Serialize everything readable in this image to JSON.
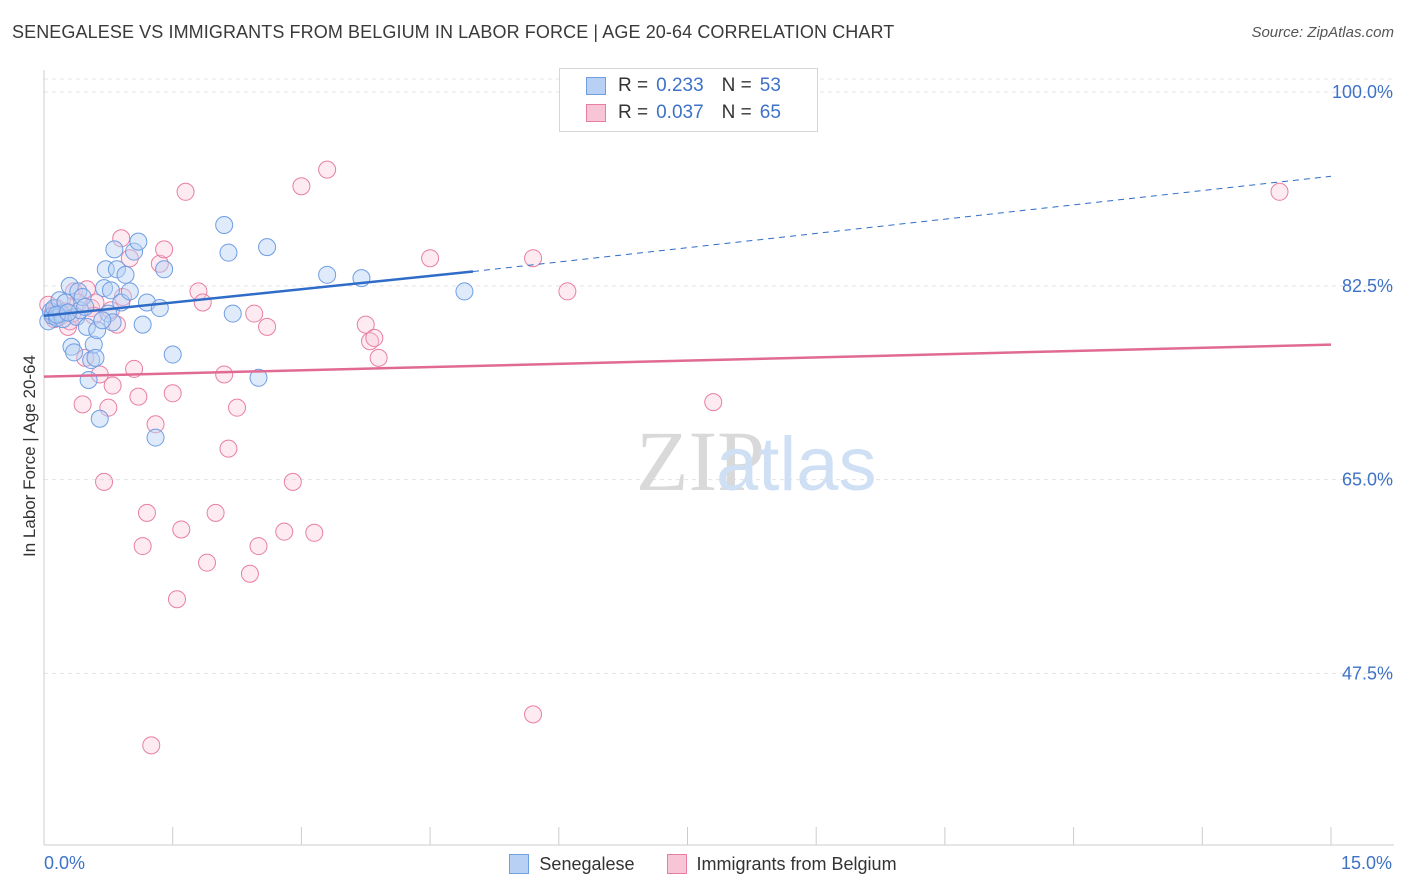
{
  "title": "SENEGALESE VS IMMIGRANTS FROM BELGIUM IN LABOR FORCE | AGE 20-64 CORRELATION CHART",
  "source": "Source: ZipAtlas.com",
  "watermark": {
    "zip": "ZIP",
    "atlas": "atlas"
  },
  "legend": {
    "r_label": "R =",
    "n_label": "N =",
    "series": [
      {
        "name": "Senegalese",
        "r": "0.233",
        "n": "53",
        "color": "#6f9ee3",
        "fill": "#b8d0f4"
      },
      {
        "name": "Immigrants from Belgium",
        "r": "0.037",
        "n": "65",
        "color": "#e87fa3",
        "fill": "#f8c5d6"
      }
    ]
  },
  "chart_data": {
    "type": "scatter",
    "title": "SENEGALESE VS IMMIGRANTS FROM BELGIUM IN LABOR FORCE | AGE 20-64 CORRELATION CHART",
    "xlabel": "",
    "ylabel": "In Labor Force | Age 20-64",
    "xlim": [
      0,
      15
    ],
    "ylim": [
      32,
      102
    ],
    "x_tick_labels": [
      "0.0%",
      "15.0%"
    ],
    "y_ticks": [
      47.5,
      65.0,
      82.5,
      100.0
    ],
    "y_tick_labels": [
      "47.5%",
      "65.0%",
      "82.5%",
      "100.0%"
    ],
    "series": [
      {
        "name": "Senegalese",
        "trend": {
          "x": [
            0.0,
            5.0
          ],
          "y": [
            79.8,
            83.8
          ],
          "extend_x": [
            5.0,
            15.0
          ],
          "extend_y": [
            83.8,
            92.4
          ]
        },
        "points": [
          [
            0.05,
            79.3
          ],
          [
            0.08,
            80.2
          ],
          [
            0.1,
            79.8
          ],
          [
            0.12,
            80.5
          ],
          [
            0.15,
            79.6
          ],
          [
            0.18,
            81.2
          ],
          [
            0.2,
            80.0
          ],
          [
            0.22,
            79.5
          ],
          [
            0.25,
            81.0
          ],
          [
            0.3,
            82.5
          ],
          [
            0.32,
            77.0
          ],
          [
            0.35,
            76.5
          ],
          [
            0.38,
            79.7
          ],
          [
            0.4,
            82.0
          ],
          [
            0.42,
            80.3
          ],
          [
            0.45,
            81.5
          ],
          [
            0.5,
            78.8
          ],
          [
            0.52,
            74.0
          ],
          [
            0.55,
            75.8
          ],
          [
            0.58,
            77.2
          ],
          [
            0.6,
            76.0
          ],
          [
            0.62,
            78.5
          ],
          [
            0.65,
            70.5
          ],
          [
            0.7,
            82.3
          ],
          [
            0.72,
            84.0
          ],
          [
            0.75,
            80.0
          ],
          [
            0.78,
            82.1
          ],
          [
            0.8,
            79.2
          ],
          [
            0.82,
            85.8
          ],
          [
            0.85,
            84.0
          ],
          [
            0.9,
            81.0
          ],
          [
            0.95,
            83.5
          ],
          [
            1.0,
            82.0
          ],
          [
            1.05,
            85.6
          ],
          [
            1.1,
            86.5
          ],
          [
            1.15,
            79.0
          ],
          [
            1.2,
            81.0
          ],
          [
            1.3,
            68.8
          ],
          [
            1.35,
            80.5
          ],
          [
            1.4,
            84.0
          ],
          [
            1.5,
            76.3
          ],
          [
            2.1,
            88.0
          ],
          [
            2.15,
            85.5
          ],
          [
            2.2,
            80.0
          ],
          [
            2.5,
            74.2
          ],
          [
            2.6,
            86.0
          ],
          [
            3.3,
            83.5
          ],
          [
            3.7,
            83.2
          ],
          [
            4.9,
            82.0
          ],
          [
            0.15,
            79.9
          ],
          [
            0.28,
            80.1
          ],
          [
            0.48,
            80.6
          ],
          [
            0.68,
            79.4
          ]
        ]
      },
      {
        "name": "Immigrants from Belgium",
        "trend": {
          "x": [
            0.0,
            15.0
          ],
          "y": [
            74.3,
            77.2
          ]
        },
        "points": [
          [
            0.05,
            80.8
          ],
          [
            0.1,
            80.0
          ],
          [
            0.12,
            79.5
          ],
          [
            0.15,
            80.5
          ],
          [
            0.2,
            79.8
          ],
          [
            0.25,
            80.2
          ],
          [
            0.28,
            78.8
          ],
          [
            0.3,
            79.3
          ],
          [
            0.35,
            82.0
          ],
          [
            0.4,
            81.0
          ],
          [
            0.45,
            71.8
          ],
          [
            0.48,
            76.0
          ],
          [
            0.5,
            82.2
          ],
          [
            0.55,
            80.5
          ],
          [
            0.6,
            81.0
          ],
          [
            0.65,
            74.5
          ],
          [
            0.7,
            64.8
          ],
          [
            0.75,
            71.5
          ],
          [
            0.8,
            73.5
          ],
          [
            0.85,
            79.0
          ],
          [
            0.9,
            86.8
          ],
          [
            0.92,
            81.5
          ],
          [
            1.0,
            85.0
          ],
          [
            1.05,
            75.0
          ],
          [
            1.1,
            72.5
          ],
          [
            1.15,
            59.0
          ],
          [
            1.2,
            62.0
          ],
          [
            1.25,
            41.0
          ],
          [
            1.3,
            70.0
          ],
          [
            1.35,
            84.5
          ],
          [
            1.4,
            85.8
          ],
          [
            1.5,
            72.8
          ],
          [
            1.55,
            54.2
          ],
          [
            1.6,
            60.5
          ],
          [
            1.65,
            91.0
          ],
          [
            1.8,
            82.0
          ],
          [
            1.85,
            81.0
          ],
          [
            1.9,
            57.5
          ],
          [
            2.0,
            62.0
          ],
          [
            2.1,
            74.5
          ],
          [
            2.15,
            67.8
          ],
          [
            2.25,
            71.5
          ],
          [
            2.4,
            56.5
          ],
          [
            2.45,
            80.0
          ],
          [
            2.5,
            59.0
          ],
          [
            2.6,
            78.8
          ],
          [
            2.8,
            60.3
          ],
          [
            2.9,
            64.8
          ],
          [
            3.0,
            91.5
          ],
          [
            3.15,
            60.2
          ],
          [
            3.3,
            93.0
          ],
          [
            3.75,
            79.0
          ],
          [
            3.8,
            77.5
          ],
          [
            3.85,
            77.8
          ],
          [
            3.9,
            76.0
          ],
          [
            4.5,
            85.0
          ],
          [
            5.7,
            85.0
          ],
          [
            6.1,
            82.0
          ],
          [
            7.8,
            72.0
          ],
          [
            5.7,
            43.8
          ],
          [
            14.4,
            91.0
          ],
          [
            0.18,
            80.1
          ],
          [
            0.33,
            80.0
          ],
          [
            0.58,
            79.8
          ],
          [
            0.78,
            80.3
          ]
        ]
      }
    ]
  }
}
